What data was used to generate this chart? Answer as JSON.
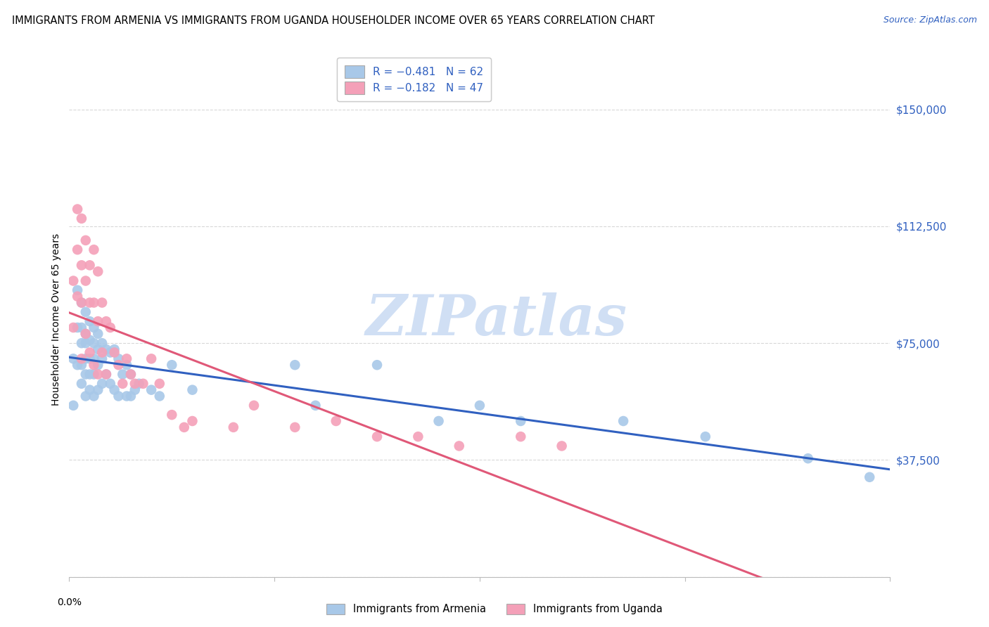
{
  "title": "IMMIGRANTS FROM ARMENIA VS IMMIGRANTS FROM UGANDA HOUSEHOLDER INCOME OVER 65 YEARS CORRELATION CHART",
  "source": "Source: ZipAtlas.com",
  "ylabel": "Householder Income Over 65 years",
  "yticks": [
    0,
    37500,
    75000,
    112500,
    150000
  ],
  "ytick_labels": [
    "",
    "$37,500",
    "$75,000",
    "$112,500",
    "$150,000"
  ],
  "xlim": [
    0.0,
    0.2
  ],
  "ylim": [
    0,
    165000
  ],
  "legend_armenia": "R = −0.481   N = 62",
  "legend_uganda": "R = −0.182   N = 47",
  "legend_label_armenia": "Immigrants from Armenia",
  "legend_label_uganda": "Immigrants from Uganda",
  "armenia_color": "#a8c8e8",
  "uganda_color": "#f4a0b8",
  "armenia_line_color": "#3060c0",
  "uganda_line_color": "#e05878",
  "watermark": "ZIPatlas",
  "watermark_color": "#d0dff4",
  "background_color": "#ffffff",
  "grid_color": "#d8d8d8",
  "armenia_x": [
    0.001,
    0.001,
    0.002,
    0.002,
    0.002,
    0.003,
    0.003,
    0.003,
    0.003,
    0.003,
    0.004,
    0.004,
    0.004,
    0.004,
    0.004,
    0.004,
    0.005,
    0.005,
    0.005,
    0.005,
    0.005,
    0.006,
    0.006,
    0.006,
    0.006,
    0.006,
    0.007,
    0.007,
    0.007,
    0.007,
    0.008,
    0.008,
    0.008,
    0.009,
    0.009,
    0.01,
    0.01,
    0.011,
    0.011,
    0.012,
    0.012,
    0.013,
    0.014,
    0.014,
    0.015,
    0.015,
    0.016,
    0.017,
    0.02,
    0.022,
    0.025,
    0.03,
    0.055,
    0.06,
    0.075,
    0.09,
    0.1,
    0.11,
    0.135,
    0.155,
    0.18,
    0.195
  ],
  "armenia_y": [
    70000,
    55000,
    92000,
    80000,
    68000,
    88000,
    80000,
    75000,
    68000,
    62000,
    85000,
    78000,
    75000,
    70000,
    65000,
    58000,
    82000,
    76000,
    70000,
    65000,
    60000,
    80000,
    75000,
    70000,
    65000,
    58000,
    78000,
    73000,
    68000,
    60000,
    75000,
    70000,
    62000,
    73000,
    65000,
    72000,
    62000,
    73000,
    60000,
    70000,
    58000,
    65000,
    68000,
    58000,
    65000,
    58000,
    60000,
    62000,
    60000,
    58000,
    68000,
    60000,
    68000,
    55000,
    68000,
    50000,
    55000,
    50000,
    50000,
    45000,
    38000,
    32000
  ],
  "uganda_x": [
    0.001,
    0.001,
    0.002,
    0.002,
    0.002,
    0.003,
    0.003,
    0.003,
    0.003,
    0.004,
    0.004,
    0.004,
    0.005,
    0.005,
    0.005,
    0.006,
    0.006,
    0.006,
    0.007,
    0.007,
    0.007,
    0.008,
    0.008,
    0.009,
    0.009,
    0.01,
    0.011,
    0.012,
    0.013,
    0.014,
    0.015,
    0.016,
    0.018,
    0.02,
    0.022,
    0.025,
    0.028,
    0.03,
    0.04,
    0.045,
    0.055,
    0.065,
    0.075,
    0.085,
    0.095,
    0.11,
    0.12
  ],
  "uganda_y": [
    95000,
    80000,
    118000,
    105000,
    90000,
    115000,
    100000,
    88000,
    70000,
    108000,
    95000,
    78000,
    100000,
    88000,
    72000,
    105000,
    88000,
    68000,
    98000,
    82000,
    65000,
    88000,
    72000,
    82000,
    65000,
    80000,
    72000,
    68000,
    62000,
    70000,
    65000,
    62000,
    62000,
    70000,
    62000,
    52000,
    48000,
    50000,
    48000,
    55000,
    48000,
    50000,
    45000,
    45000,
    42000,
    45000,
    42000
  ]
}
